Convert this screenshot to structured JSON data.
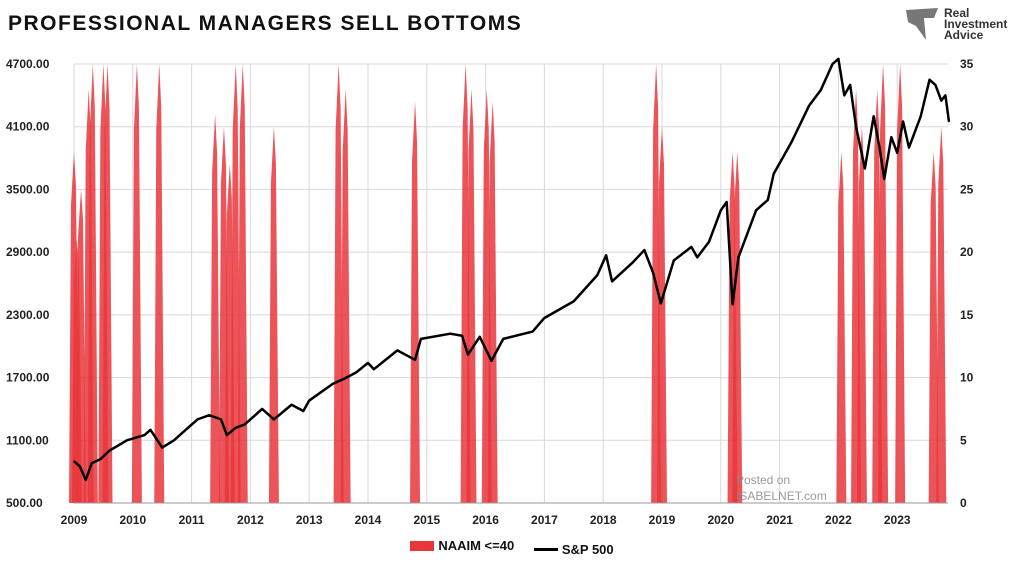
{
  "title": "PROFESSIONAL MANAGERS SELL BOTTOMS",
  "logo": {
    "line1": "Real",
    "line2": "Investment",
    "line3": "Advice"
  },
  "watermark": {
    "line1": "Posted on",
    "line2": "ISABELNET.com"
  },
  "chart_data": {
    "type": "line",
    "title": "PROFESSIONAL MANAGERS SELL BOTTOMS",
    "xlim": [
      2009,
      2023.9
    ],
    "x_ticks": [
      "2009",
      "2010",
      "2011",
      "2012",
      "2013",
      "2014",
      "2015",
      "2016",
      "2017",
      "2018",
      "2019",
      "2020",
      "2021",
      "2022",
      "2023"
    ],
    "y_left": {
      "lim": [
        500,
        4700
      ],
      "ticks": [
        "500.00",
        "1100.00",
        "1700.00",
        "2300.00",
        "2900.00",
        "3500.00",
        "4100.00",
        "4700.00"
      ]
    },
    "y_right": {
      "lim": [
        0,
        35
      ],
      "ticks": [
        "0",
        "5",
        "10",
        "15",
        "20",
        "25",
        "30",
        "35"
      ]
    },
    "grid": true,
    "legend_position": "bottom",
    "colors": {
      "naaim": "#e8363b",
      "sp500": "#000000"
    },
    "series": [
      {
        "name": "NAAIM <=40",
        "axis": "right",
        "type": "area",
        "spikes": [
          [
            2009.0,
            28
          ],
          [
            2009.05,
            21
          ],
          [
            2009.12,
            25
          ],
          [
            2009.25,
            33
          ],
          [
            2009.32,
            35
          ],
          [
            2009.5,
            35
          ],
          [
            2009.57,
            35
          ],
          [
            2010.07,
            35
          ],
          [
            2010.45,
            35
          ],
          [
            2011.4,
            31
          ],
          [
            2011.55,
            30
          ],
          [
            2011.65,
            27
          ],
          [
            2011.75,
            35
          ],
          [
            2011.87,
            35
          ],
          [
            2012.4,
            30
          ],
          [
            2013.5,
            35
          ],
          [
            2013.62,
            33
          ],
          [
            2014.8,
            32
          ],
          [
            2015.66,
            35
          ],
          [
            2015.76,
            33
          ],
          [
            2016.02,
            33
          ],
          [
            2016.12,
            32
          ],
          [
            2018.9,
            35
          ],
          [
            2019.0,
            30
          ],
          [
            2020.2,
            28
          ],
          [
            2020.28,
            28
          ],
          [
            2022.05,
            28
          ],
          [
            2022.3,
            33
          ],
          [
            2022.4,
            30
          ],
          [
            2022.66,
            33
          ],
          [
            2022.76,
            35
          ],
          [
            2023.05,
            35
          ],
          [
            2023.62,
            28
          ],
          [
            2023.75,
            30
          ]
        ]
      },
      {
        "name": "S&P 500",
        "axis": "left",
        "x": [
          2009.0,
          2009.1,
          2009.2,
          2009.3,
          2009.45,
          2009.6,
          2009.9,
          2010.2,
          2010.3,
          2010.5,
          2010.7,
          2010.9,
          2011.1,
          2011.3,
          2011.5,
          2011.6,
          2011.75,
          2011.9,
          2012.2,
          2012.4,
          2012.7,
          2012.9,
          2013.0,
          2013.4,
          2013.6,
          2013.8,
          2014.0,
          2014.1,
          2014.5,
          2014.8,
          2014.9,
          2015.4,
          2015.6,
          2015.7,
          2015.9,
          2016.1,
          2016.3,
          2016.8,
          2017.0,
          2017.5,
          2017.9,
          2018.05,
          2018.15,
          2018.5,
          2018.7,
          2018.85,
          2018.98,
          2019.2,
          2019.5,
          2019.6,
          2019.8,
          2020.0,
          2020.1,
          2020.2,
          2020.3,
          2020.6,
          2020.8,
          2020.9,
          2021.2,
          2021.5,
          2021.7,
          2021.9,
          2022.0,
          2022.1,
          2022.2,
          2022.3,
          2022.45,
          2022.6,
          2022.7,
          2022.78,
          2022.9,
          2023.0,
          2023.1,
          2023.2,
          2023.4,
          2023.55,
          2023.65,
          2023.75,
          2023.82,
          2023.88
        ],
        "values": [
          900,
          850,
          720,
          880,
          920,
          1000,
          1100,
          1150,
          1200,
          1030,
          1100,
          1200,
          1300,
          1340,
          1300,
          1150,
          1220,
          1250,
          1400,
          1300,
          1440,
          1380,
          1480,
          1640,
          1690,
          1750,
          1840,
          1780,
          1960,
          1870,
          2070,
          2120,
          2100,
          1920,
          2090,
          1860,
          2070,
          2140,
          2270,
          2430,
          2680,
          2870,
          2620,
          2800,
          2920,
          2700,
          2410,
          2820,
          2950,
          2850,
          3000,
          3300,
          3380,
          2400,
          2850,
          3300,
          3400,
          3650,
          3950,
          4300,
          4450,
          4700,
          4750,
          4400,
          4500,
          4100,
          3700,
          4200,
          3900,
          3600,
          4000,
          3850,
          4150,
          3900,
          4200,
          4550,
          4500,
          4350,
          4400,
          4150
        ]
      }
    ]
  },
  "legend": {
    "naaim": "NAAIM <=40",
    "sp500": "S&P 500"
  }
}
